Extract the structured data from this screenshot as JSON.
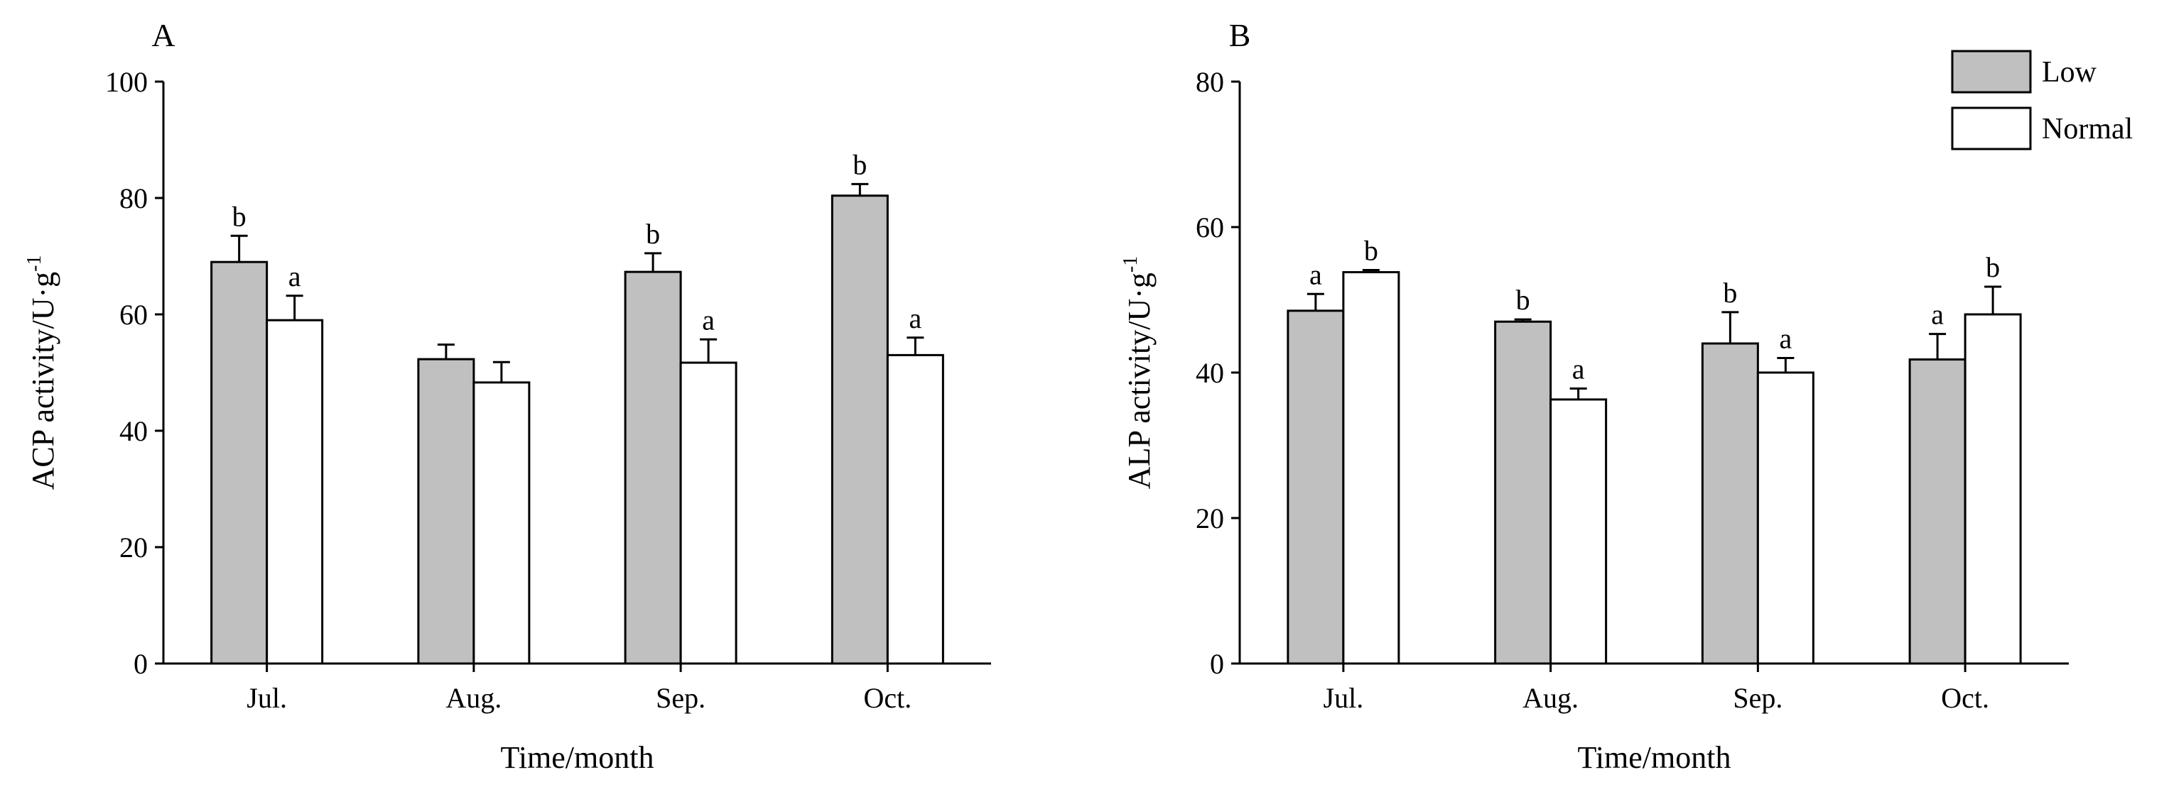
{
  "chart_data": [
    {
      "type": "bar",
      "panel_label": "A",
      "categories": [
        "Jul.",
        "Aug.",
        "Sep.",
        "Oct."
      ],
      "xlabel": "Time/month",
      "ylabel": "ACP activity/U·g",
      "ylabel_sup": "-1",
      "ylim": [
        0,
        100
      ],
      "yticks": [
        0,
        20,
        40,
        60,
        80,
        100
      ],
      "series": [
        {
          "name": "Low",
          "color": "#c0c0c0",
          "values": [
            69,
            52.3,
            67.3,
            80.4
          ],
          "errors": [
            4.5,
            2.5,
            3.2,
            2.0
          ],
          "labels": [
            "b",
            "",
            "b",
            "b"
          ]
        },
        {
          "name": "Normal",
          "color": "#ffffff",
          "values": [
            59,
            48.3,
            51.7,
            53
          ],
          "errors": [
            4.2,
            3.5,
            4.0,
            3.0
          ],
          "labels": [
            "a",
            "",
            "a",
            "a"
          ]
        }
      ]
    },
    {
      "type": "bar",
      "panel_label": "B",
      "categories": [
        "Jul.",
        "Aug.",
        "Sep.",
        "Oct."
      ],
      "xlabel": "Time/month",
      "ylabel": "ALP activity/U·g",
      "ylabel_sup": "-1",
      "ylim": [
        0,
        80
      ],
      "yticks": [
        0,
        20,
        40,
        60,
        80
      ],
      "series": [
        {
          "name": "Low",
          "color": "#c0c0c0",
          "values": [
            48.5,
            47,
            44,
            41.8
          ],
          "errors": [
            2.3,
            0.3,
            4.3,
            3.5
          ],
          "labels": [
            "a",
            "b",
            "b",
            "a"
          ]
        },
        {
          "name": "Normal",
          "color": "#ffffff",
          "values": [
            53.8,
            36.3,
            40,
            48
          ],
          "errors": [
            0.3,
            1.5,
            2.0,
            3.8
          ],
          "labels": [
            "b",
            "a",
            "a",
            "b"
          ]
        }
      ]
    }
  ],
  "legend": {
    "placement": "top-right",
    "items": [
      {
        "label": "Low",
        "color": "#c0c0c0"
      },
      {
        "label": "Normal",
        "color": "#ffffff"
      }
    ]
  }
}
